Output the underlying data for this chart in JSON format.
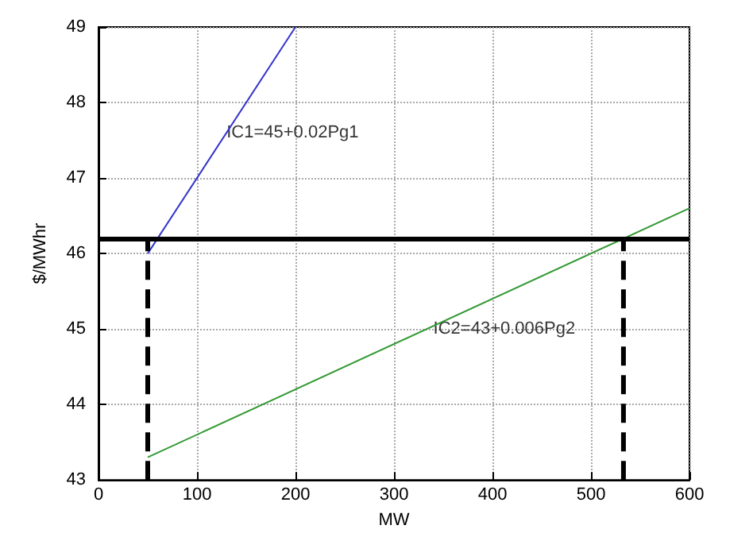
{
  "chart_data": {
    "type": "line",
    "xlabel": "MW",
    "ylabel": "$/MWhr",
    "xlim": [
      0,
      600
    ],
    "xticks": [
      0,
      100,
      200,
      300,
      400,
      500,
      600
    ],
    "ylim": [
      43,
      49
    ],
    "yticks": [
      43,
      44,
      45,
      46,
      47,
      48,
      49
    ],
    "grid": true,
    "marker": "none",
    "series": [
      {
        "color": "#3333cc",
        "x": [
          50,
          200
        ],
        "values": [
          46,
          49
        ]
      },
      {
        "color": "#339933",
        "x": [
          50,
          600
        ],
        "values": [
          43.3,
          46.6
        ]
      },
      {
        "color": "#000000",
        "x": [
          50,
          50
        ],
        "values": [
          43,
          46.2
        ],
        "line_style": "dashed"
      },
      {
        "color": "#000000",
        "x": [
          533,
          533
        ],
        "values": [
          43,
          46.2
        ],
        "line_style": "dashed"
      }
    ],
    "ref_lines": [
      {
        "axis": "y",
        "value": 46.2,
        "color": "#000000"
      }
    ],
    "annotations": [
      {
        "text": "IC1=45+0.02Pg1",
        "x": 130,
        "y": 47.6
      },
      {
        "text": "IC2=43+0.006Pg2",
        "x": 340,
        "y": 45
      }
    ]
  }
}
